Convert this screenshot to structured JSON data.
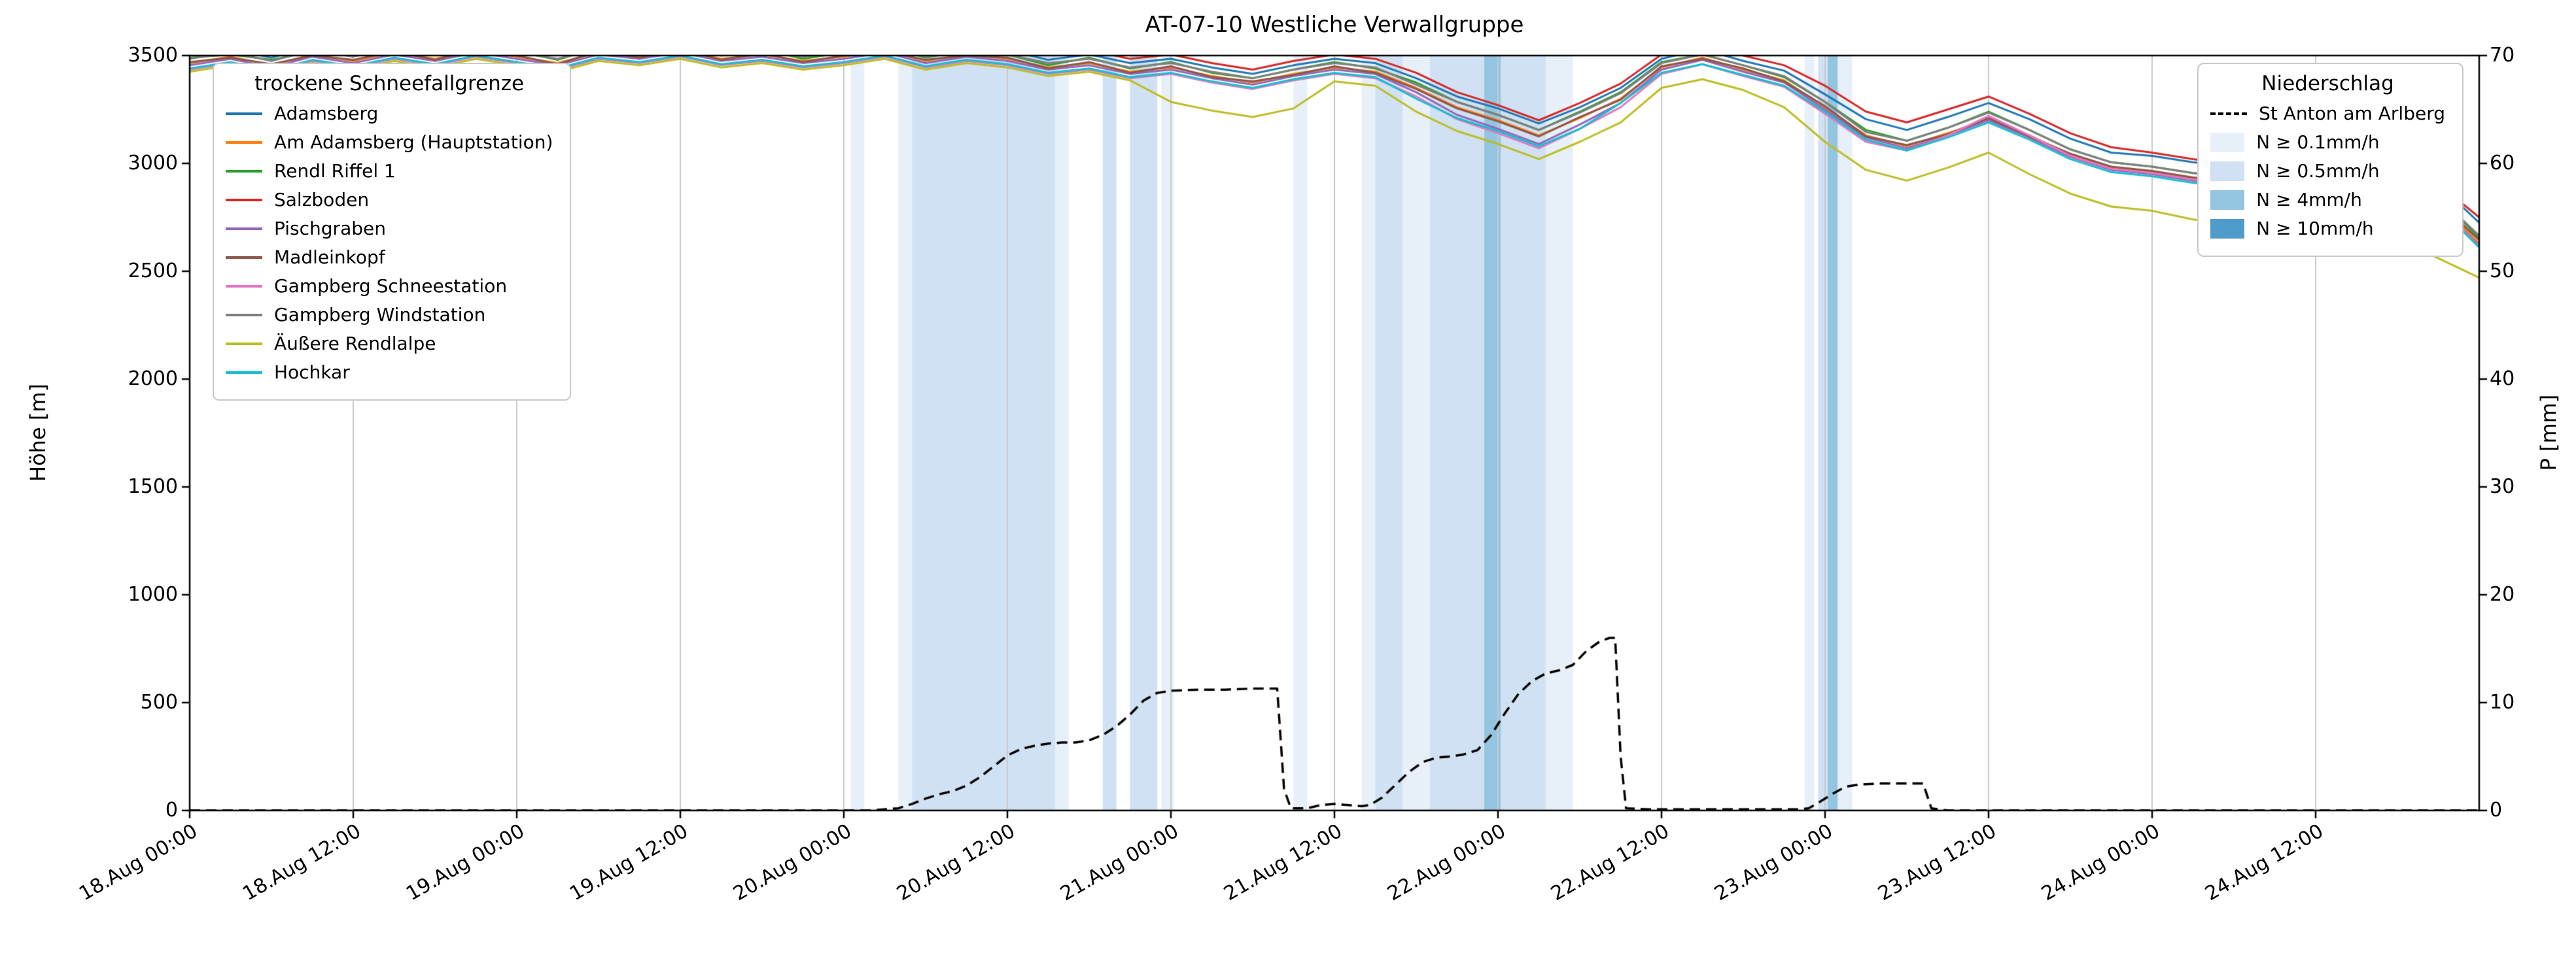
{
  "chart_data": {
    "type": "line",
    "title": "AT-07-10 Westliche Verwallgruppe",
    "ylabel_left": "Höhe [m]",
    "ylabel_right": "P [mm]",
    "x_start": "18.Aug 00:00",
    "x_range_hours": [
      0,
      168
    ],
    "x_tick_hours": [
      0,
      12,
      24,
      36,
      48,
      60,
      72,
      84,
      96,
      108,
      120,
      132,
      144,
      156
    ],
    "x_tick_labels": [
      "18.Aug 00:00",
      "18.Aug 12:00",
      "19.Aug 00:00",
      "19.Aug 12:00",
      "20.Aug 00:00",
      "20.Aug 12:00",
      "21.Aug 00:00",
      "21.Aug 12:00",
      "22.Aug 00:00",
      "22.Aug 12:00",
      "23.Aug 00:00",
      "23.Aug 12:00",
      "24.Aug 00:00",
      "24.Aug 12:00"
    ],
    "ylim_left": [
      0,
      3500
    ],
    "ylim_right": [
      0,
      70
    ],
    "y_left_ticks": [
      0,
      500,
      1000,
      1500,
      2000,
      2500,
      3000,
      3500
    ],
    "y_right_ticks": [
      0,
      10,
      20,
      30,
      40,
      50,
      60,
      70
    ],
    "grid": "vertical",
    "sample_step_hours": 3,
    "series": [
      {
        "name": "Adamsberg",
        "color": "#1f77b4",
        "values": [
          3510,
          3530,
          3490,
          3545,
          3515,
          3550,
          3525,
          3560,
          3535,
          3505,
          3550,
          3530,
          3560,
          3520,
          3545,
          3510,
          3535,
          3560,
          3515,
          3540,
          3525,
          3480,
          3505,
          3465,
          3485,
          3445,
          3415,
          3455,
          3485,
          3465,
          3395,
          3310,
          3255,
          3185,
          3260,
          3350,
          3485,
          3530,
          3475,
          3430,
          3320,
          3205,
          3155,
          3215,
          3280,
          3205,
          3115,
          3050,
          3035,
          3005,
          2985,
          3015,
          2975,
          2955,
          2940,
          2905,
          2725
        ]
      },
      {
        "name": "Am Adamsberg (Hauptstation)",
        "color": "#ff7f0e",
        "values": [
          3465,
          3495,
          3455,
          3505,
          3475,
          3515,
          3485,
          3525,
          3495,
          3465,
          3515,
          3495,
          3525,
          3485,
          3505,
          3475,
          3495,
          3525,
          3475,
          3505,
          3485,
          3445,
          3465,
          3425,
          3445,
          3405,
          3375,
          3415,
          3445,
          3425,
          3350,
          3260,
          3200,
          3130,
          3210,
          3300,
          3445,
          3490,
          3435,
          3385,
          3260,
          3130,
          3080,
          3140,
          3205,
          3130,
          3040,
          2980,
          2960,
          2930,
          2910,
          2940,
          2900,
          2880,
          2855,
          2815,
          2630
        ]
      },
      {
        "name": "Rendl Riffel 1",
        "color": "#2ca02c",
        "values": [
          3490,
          3505,
          3480,
          3520,
          3500,
          3535,
          3505,
          3545,
          3520,
          3480,
          3540,
          3505,
          3550,
          3500,
          3530,
          3485,
          3515,
          3545,
          3490,
          3525,
          3505,
          3455,
          3490,
          3440,
          3470,
          3420,
          3395,
          3435,
          3470,
          3440,
          3375,
          3285,
          3225,
          3155,
          3240,
          3330,
          3470,
          3505,
          3455,
          3400,
          3285,
          3155,
          3105,
          3165,
          3240,
          3155,
          3065,
          3005,
          2985,
          2955,
          2935,
          2965,
          2925,
          2905,
          2885,
          2845,
          2655
        ]
      },
      {
        "name": "Salzboden",
        "color": "#d62728",
        "values": [
          3525,
          3555,
          3515,
          3565,
          3535,
          3575,
          3545,
          3585,
          3555,
          3525,
          3575,
          3555,
          3585,
          3545,
          3565,
          3535,
          3555,
          3585,
          3535,
          3565,
          3545,
          3505,
          3525,
          3485,
          3505,
          3465,
          3435,
          3475,
          3505,
          3485,
          3420,
          3330,
          3270,
          3200,
          3280,
          3370,
          3505,
          3545,
          3500,
          3455,
          3360,
          3240,
          3190,
          3250,
          3310,
          3230,
          3140,
          3075,
          3050,
          3020,
          2995,
          3025,
          2985,
          2960,
          2945,
          2905,
          2750
        ]
      },
      {
        "name": "Pischgraben",
        "color": "#9467bd",
        "values": [
          3455,
          3485,
          3445,
          3495,
          3465,
          3505,
          3475,
          3515,
          3485,
          3455,
          3505,
          3485,
          3515,
          3475,
          3495,
          3465,
          3485,
          3515,
          3465,
          3495,
          3475,
          3435,
          3455,
          3415,
          3435,
          3395,
          3365,
          3405,
          3435,
          3415,
          3330,
          3225,
          3160,
          3090,
          3180,
          3280,
          3435,
          3480,
          3425,
          3375,
          3250,
          3120,
          3070,
          3130,
          3200,
          3120,
          3030,
          2970,
          2950,
          2920,
          2900,
          2930,
          2890,
          2870,
          2845,
          2805,
          2620
        ]
      },
      {
        "name": "Madleinkopf",
        "color": "#8c564b",
        "values": [
          3470,
          3490,
          3460,
          3500,
          3480,
          3520,
          3480,
          3530,
          3500,
          3460,
          3520,
          3490,
          3530,
          3480,
          3510,
          3470,
          3500,
          3520,
          3480,
          3500,
          3490,
          3440,
          3470,
          3420,
          3450,
          3400,
          3380,
          3410,
          3450,
          3420,
          3345,
          3255,
          3195,
          3125,
          3215,
          3295,
          3450,
          3485,
          3440,
          3380,
          3265,
          3125,
          3085,
          3135,
          3210,
          3125,
          3045,
          2985,
          2965,
          2935,
          2915,
          2945,
          2905,
          2885,
          2860,
          2820,
          2645
        ]
      },
      {
        "name": "Gampberg Schneestation",
        "color": "#e377c2",
        "values": [
          3435,
          3465,
          3425,
          3475,
          3445,
          3485,
          3455,
          3495,
          3465,
          3435,
          3485,
          3465,
          3495,
          3455,
          3475,
          3445,
          3465,
          3495,
          3445,
          3475,
          3455,
          3415,
          3435,
          3395,
          3415,
          3375,
          3345,
          3385,
          3415,
          3395,
          3310,
          3205,
          3140,
          3070,
          3160,
          3260,
          3415,
          3460,
          3405,
          3355,
          3230,
          3100,
          3060,
          3130,
          3220,
          3130,
          3035,
          2975,
          2955,
          2925,
          2905,
          2935,
          2895,
          2875,
          2850,
          2810,
          2615
        ]
      },
      {
        "name": "Gampberg Windstation",
        "color": "#7f7f7f",
        "values": [
          3485,
          3515,
          3475,
          3525,
          3495,
          3535,
          3505,
          3545,
          3515,
          3485,
          3535,
          3515,
          3545,
          3505,
          3525,
          3495,
          3515,
          3545,
          3495,
          3525,
          3505,
          3465,
          3485,
          3445,
          3465,
          3425,
          3395,
          3435,
          3465,
          3445,
          3365,
          3285,
          3225,
          3155,
          3235,
          3325,
          3465,
          3505,
          3455,
          3405,
          3285,
          3145,
          3105,
          3165,
          3235,
          3155,
          3065,
          3005,
          2985,
          2955,
          2945,
          2965,
          2925,
          2905,
          2885,
          2845,
          2665
        ]
      },
      {
        "name": "Äußere Rendlalpe",
        "color": "#bcbd22",
        "values": [
          3425,
          3455,
          3415,
          3465,
          3435,
          3475,
          3445,
          3485,
          3455,
          3425,
          3475,
          3455,
          3485,
          3445,
          3465,
          3435,
          3455,
          3485,
          3435,
          3465,
          3445,
          3405,
          3425,
          3385,
          3285,
          3245,
          3215,
          3255,
          3380,
          3360,
          3240,
          3150,
          3090,
          3020,
          3100,
          3190,
          3350,
          3390,
          3340,
          3260,
          3100,
          2970,
          2920,
          2980,
          3050,
          2950,
          2860,
          2800,
          2780,
          2740,
          2720,
          2750,
          2700,
          2680,
          2650,
          2560,
          2470
        ]
      },
      {
        "name": "Hochkar",
        "color": "#17becf",
        "values": [
          3440,
          3470,
          3430,
          3480,
          3450,
          3490,
          3460,
          3500,
          3470,
          3440,
          3490,
          3470,
          3500,
          3460,
          3480,
          3450,
          3470,
          3500,
          3450,
          3480,
          3460,
          3420,
          3440,
          3400,
          3420,
          3380,
          3350,
          3390,
          3420,
          3400,
          3300,
          3210,
          3150,
          3080,
          3160,
          3280,
          3420,
          3460,
          3410,
          3360,
          3240,
          3110,
          3060,
          3120,
          3190,
          3110,
          3020,
          2960,
          2940,
          2910,
          2890,
          2920,
          2880,
          2860,
          2840,
          2800,
          2610
        ]
      }
    ],
    "precipitation_line": {
      "name": "St Anton am Arlberg",
      "color": "#000000",
      "style": "dashed",
      "axis": "right",
      "points": [
        [
          0,
          0
        ],
        [
          24,
          0
        ],
        [
          44,
          0
        ],
        [
          50,
          0
        ],
        [
          52,
          0.2
        ],
        [
          53,
          0.6
        ],
        [
          54,
          1.1
        ],
        [
          55,
          1.5
        ],
        [
          56,
          1.8
        ],
        [
          57,
          2.3
        ],
        [
          58,
          3.1
        ],
        [
          59,
          4.1
        ],
        [
          60,
          5.1
        ],
        [
          61,
          5.7
        ],
        [
          62,
          6.0
        ],
        [
          63,
          6.2
        ],
        [
          64,
          6.3
        ],
        [
          65,
          6.3
        ],
        [
          66,
          6.5
        ],
        [
          67,
          7.0
        ],
        [
          68,
          7.8
        ],
        [
          69,
          8.9
        ],
        [
          70,
          10.2
        ],
        [
          71,
          10.9
        ],
        [
          72,
          11.1
        ],
        [
          74,
          11.2
        ],
        [
          76,
          11.2
        ],
        [
          78,
          11.3
        ],
        [
          79.8,
          11.3
        ],
        [
          80.3,
          2.0
        ],
        [
          80.8,
          0.2
        ],
        [
          82,
          0.2
        ],
        [
          83,
          0.5
        ],
        [
          84,
          0.6
        ],
        [
          85,
          0.5
        ],
        [
          86,
          0.4
        ],
        [
          86.6,
          0.5
        ],
        [
          87.5,
          1.2
        ],
        [
          88.5,
          2.4
        ],
        [
          89.5,
          3.6
        ],
        [
          90.5,
          4.5
        ],
        [
          91.5,
          4.9
        ],
        [
          92.5,
          5.0
        ],
        [
          93.5,
          5.2
        ],
        [
          94.5,
          5.6
        ],
        [
          95.5,
          7.0
        ],
        [
          96.5,
          9.0
        ],
        [
          97.5,
          10.8
        ],
        [
          98.5,
          12.0
        ],
        [
          99.5,
          12.7
        ],
        [
          100.5,
          13.0
        ],
        [
          101.5,
          13.5
        ],
        [
          102.5,
          14.8
        ],
        [
          103.5,
          15.7
        ],
        [
          104.2,
          16.0
        ],
        [
          104.6,
          16.0
        ],
        [
          105,
          5.0
        ],
        [
          105.4,
          0.2
        ],
        [
          107,
          0.1
        ],
        [
          110,
          0.1
        ],
        [
          114,
          0.1
        ],
        [
          118,
          0.1
        ],
        [
          118.8,
          0.2
        ],
        [
          119.5,
          0.7
        ],
        [
          120.5,
          1.5
        ],
        [
          121.5,
          2.2
        ],
        [
          122.5,
          2.4
        ],
        [
          124,
          2.5
        ],
        [
          126,
          2.5
        ],
        [
          127.2,
          2.5
        ],
        [
          127.8,
          0.2
        ],
        [
          129,
          0
        ],
        [
          134,
          0
        ],
        [
          144,
          0
        ],
        [
          156,
          0
        ],
        [
          168,
          0
        ]
      ]
    },
    "precipitation_bands": [
      {
        "start": 48.5,
        "end": 49.5,
        "level": "0.1"
      },
      {
        "start": 52,
        "end": 53,
        "level": "0.1"
      },
      {
        "start": 53,
        "end": 63.5,
        "level": "0.5"
      },
      {
        "start": 63.5,
        "end": 64.5,
        "level": "0.1"
      },
      {
        "start": 67,
        "end": 68,
        "level": "0.5"
      },
      {
        "start": 69,
        "end": 71,
        "level": "0.5"
      },
      {
        "start": 71.3,
        "end": 72.2,
        "level": "0.1"
      },
      {
        "start": 81,
        "end": 82,
        "level": "0.1"
      },
      {
        "start": 86,
        "end": 87,
        "level": "0.1"
      },
      {
        "start": 87,
        "end": 89,
        "level": "0.5"
      },
      {
        "start": 89,
        "end": 91,
        "level": "0.1"
      },
      {
        "start": 91,
        "end": 99.5,
        "level": "0.5"
      },
      {
        "start": 95,
        "end": 96.2,
        "level": "4"
      },
      {
        "start": 99.5,
        "end": 101.5,
        "level": "0.1"
      },
      {
        "start": 118.5,
        "end": 119.2,
        "level": "0.1"
      },
      {
        "start": 119.5,
        "end": 121,
        "level": "0.5"
      },
      {
        "start": 120.2,
        "end": 120.9,
        "level": "4"
      },
      {
        "start": 121,
        "end": 122,
        "level": "0.1"
      }
    ],
    "band_colors": {
      "0.1": "#e7f0f9",
      "0.5": "#cfe1f2",
      "4": "#93c4e0",
      "10": "#4f9bcb"
    }
  },
  "legend_stations": {
    "title": "trockene Schneefallgrenze"
  },
  "legend_precip": {
    "title": "Niederschlag",
    "line_label": "St Anton am Arlberg",
    "band_levels": [
      "0.1",
      "0.5",
      "4",
      "10"
    ],
    "band_labels": [
      "N ≥ 0.1mm/h",
      "N ≥ 0.5mm/h",
      "N ≥ 4mm/h",
      "N ≥ 10mm/h"
    ]
  }
}
